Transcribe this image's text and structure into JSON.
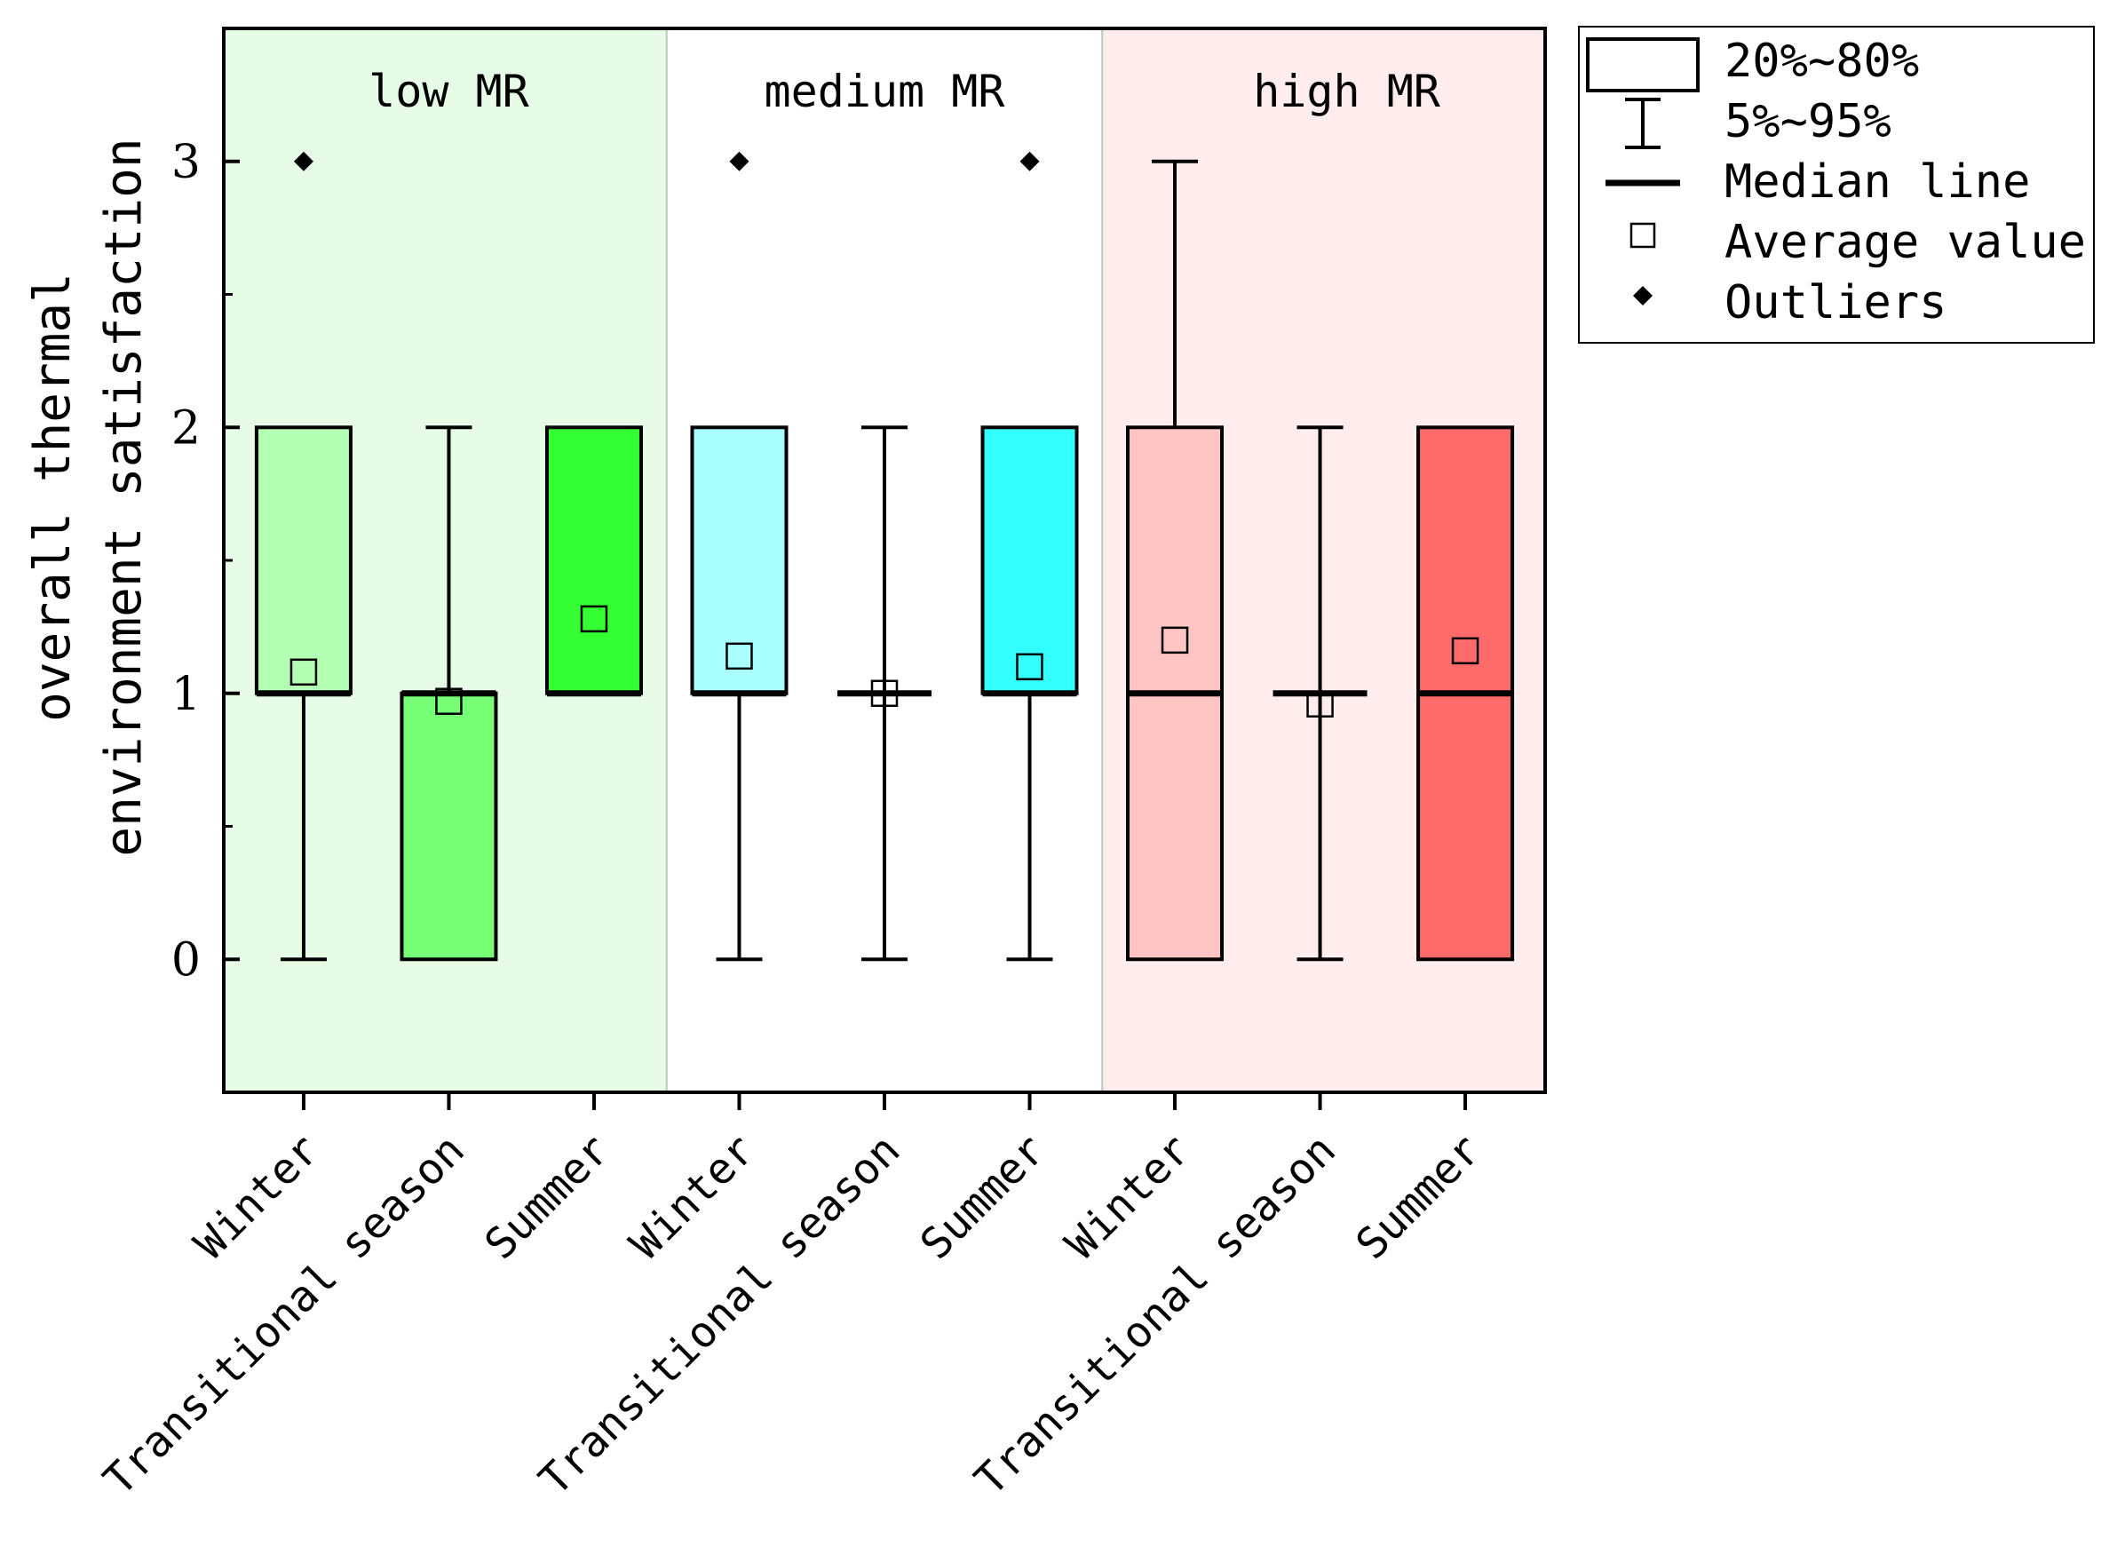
{
  "chart_data": {
    "type": "box",
    "ylabel_lines": [
      "overall thermal",
      "environment satisfaction"
    ],
    "ylim": [
      -0.5,
      3.5
    ],
    "yticks": [
      0,
      1,
      2,
      3
    ],
    "groups": [
      {
        "label": "low MR",
        "background": "#e6fce6"
      },
      {
        "label": "medium MR",
        "background": "#ffffff"
      },
      {
        "label": "high MR",
        "background": "#ffecec"
      }
    ],
    "boxes": [
      {
        "group": 0,
        "category": "Winter",
        "color": "#b3ffb3",
        "q20": 1,
        "q80": 2,
        "median": 1,
        "whisker_low": 0,
        "whisker_high": 1,
        "mean": 1.08,
        "outliers": [
          3
        ]
      },
      {
        "group": 0,
        "category": "Transitional season",
        "color": "#77ff77",
        "q20": 0,
        "q80": 1,
        "median": 1,
        "whisker_low": 1,
        "whisker_high": 2,
        "mean": 0.97,
        "outliers": []
      },
      {
        "group": 0,
        "category": "Summer",
        "color": "#33ff33",
        "q20": 1,
        "q80": 2,
        "median": 1,
        "whisker_low": 1,
        "whisker_high": 2,
        "mean": 1.28,
        "outliers": []
      },
      {
        "group": 1,
        "category": "Winter",
        "color": "#aaffff",
        "q20": 1,
        "q80": 2,
        "median": 1,
        "whisker_low": 0,
        "whisker_high": 1,
        "mean": 1.14,
        "outliers": [
          3
        ]
      },
      {
        "group": 1,
        "category": "Transitional season",
        "color": "#ffffff",
        "q20": 1,
        "q80": 1,
        "median": 1,
        "whisker_low": 0,
        "whisker_high": 2,
        "mean": 1.0,
        "outliers": []
      },
      {
        "group": 1,
        "category": "Summer",
        "color": "#33ffff",
        "q20": 1,
        "q80": 2,
        "median": 1,
        "whisker_low": 0,
        "whisker_high": 1,
        "mean": 1.1,
        "outliers": [
          3
        ]
      },
      {
        "group": 2,
        "category": "Winter",
        "color": "#ffc4c4",
        "q20": 0,
        "q80": 2,
        "median": 1,
        "whisker_low": 0,
        "whisker_high": 3,
        "mean": 1.2,
        "outliers": []
      },
      {
        "group": 2,
        "category": "Transitional season",
        "color": "#ffffff",
        "q20": 1,
        "q80": 1,
        "median": 1,
        "whisker_low": 0,
        "whisker_high": 2,
        "mean": 0.96,
        "outliers": []
      },
      {
        "group": 2,
        "category": "Summer",
        "color": "#ff6b6b",
        "q20": 0,
        "q80": 2,
        "median": 1,
        "whisker_low": 0,
        "whisker_high": 1,
        "mean": 1.16,
        "outliers": []
      }
    ],
    "legend": {
      "position": "top-right, outside plot",
      "items": [
        {
          "symbol": "box",
          "label": "20%~80%"
        },
        {
          "symbol": "whisker",
          "label": "5%~95%"
        },
        {
          "symbol": "median",
          "label": "Median line"
        },
        {
          "symbol": "mean",
          "label": "Average value"
        },
        {
          "symbol": "outlier",
          "label": "Outliers"
        }
      ]
    }
  }
}
